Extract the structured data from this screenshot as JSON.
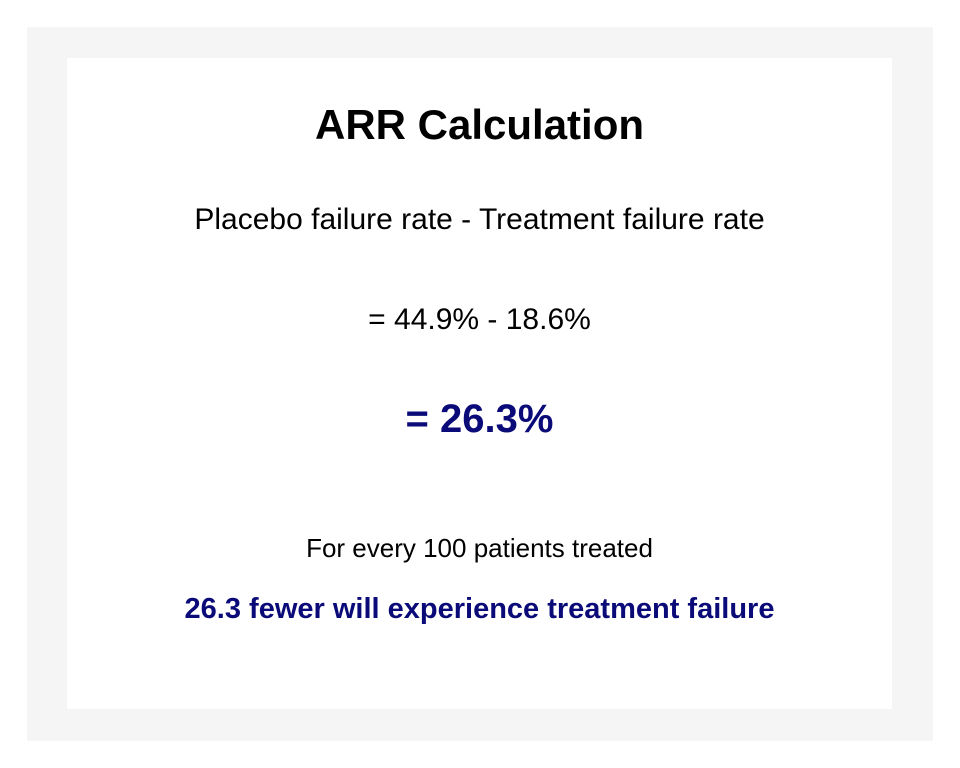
{
  "title": "ARR Calculation",
  "formula": "Placebo failure rate - Treatment failure rate",
  "substitution": "= 44.9% - 18.6%",
  "result": "= 26.3%",
  "interpretation": {
    "lead": "For every 100 patients treated",
    "outcome": "26.3 fewer will experience treatment failure"
  },
  "colors": {
    "accent": "#0a0a78",
    "frame_background": "#f5f5f5",
    "card_background": "#ffffff"
  }
}
